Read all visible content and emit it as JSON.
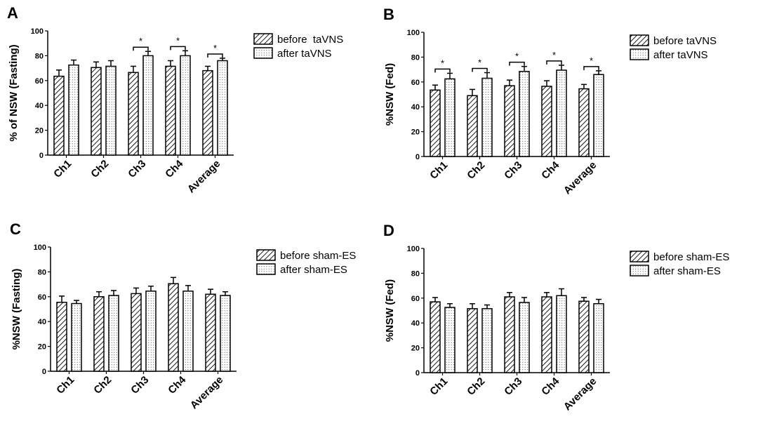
{
  "chart_data": [
    {
      "type": "bar",
      "panel_label": "A",
      "ylabel": "% of NSW (Fasting)",
      "ylim": [
        0,
        100
      ],
      "yticks": [
        "0",
        "20",
        "40",
        "60",
        "80",
        "100"
      ],
      "categories": [
        "Ch1",
        "Ch2",
        "Ch3",
        "Ch4",
        "Average"
      ],
      "series": [
        {
          "name": "before  taVNS",
          "pattern": "hatch",
          "values": [
            63.5,
            70.5,
            66.5,
            71.5,
            68
          ],
          "errors": [
            5,
            4.5,
            5,
            4.5,
            3.5
          ]
        },
        {
          "name": "after taVNS",
          "pattern": "dots",
          "values": [
            72.5,
            71.5,
            80,
            80,
            76
          ],
          "errors": [
            4,
            4.5,
            3.5,
            4,
            2
          ]
        }
      ],
      "significance": [
        false,
        false,
        true,
        true,
        true
      ],
      "significance_mark": "*"
    },
    {
      "type": "bar",
      "panel_label": "B",
      "ylabel": "%NSW (Fed)",
      "ylim": [
        0,
        100
      ],
      "yticks": [
        "0",
        "20",
        "40",
        "60",
        "80",
        "100"
      ],
      "categories": [
        "Ch1",
        "Ch2",
        "Ch3",
        "Ch4",
        "Average"
      ],
      "series": [
        {
          "name": "before taVNS",
          "pattern": "hatch",
          "values": [
            53.5,
            49,
            57,
            56.5,
            54.5
          ],
          "errors": [
            4,
            5,
            4.5,
            4.5,
            3.5
          ]
        },
        {
          "name": "after taVNS",
          "pattern": "dots",
          "values": [
            62.5,
            63,
            68.5,
            69.5,
            66
          ],
          "errors": [
            4.5,
            4.5,
            4,
            4,
            3
          ]
        }
      ],
      "significance": [
        true,
        true,
        true,
        true,
        true
      ],
      "significance_mark": "*"
    },
    {
      "type": "bar",
      "panel_label": "C",
      "ylabel": "%NSW (Fasting)",
      "ylim": [
        0,
        100
      ],
      "yticks": [
        "0",
        "20",
        "40",
        "60",
        "80",
        "100"
      ],
      "categories": [
        "Ch1",
        "Ch2",
        "Ch3",
        "Ch4",
        "Average"
      ],
      "series": [
        {
          "name": "before sham-ES",
          "pattern": "hatch",
          "values": [
            55.5,
            60,
            62.5,
            70.5,
            62
          ],
          "errors": [
            5,
            4,
            4.5,
            5,
            4
          ]
        },
        {
          "name": "after sham-ES",
          "pattern": "dots",
          "values": [
            54.5,
            61,
            64.5,
            64.5,
            61
          ],
          "errors": [
            2.5,
            4,
            4,
            4.5,
            3
          ]
        }
      ],
      "significance": [
        false,
        false,
        false,
        false,
        false
      ],
      "significance_mark": "*"
    },
    {
      "type": "bar",
      "panel_label": "D",
      "ylabel": "%NSW (Fed)",
      "ylim": [
        0,
        100
      ],
      "yticks": [
        "0",
        "20",
        "40",
        "60",
        "80",
        "100"
      ],
      "categories": [
        "Ch1",
        "Ch2",
        "Ch3",
        "Ch4",
        "Average"
      ],
      "series": [
        {
          "name": "before sham-ES",
          "pattern": "hatch",
          "values": [
            57,
            51.5,
            61,
            61,
            57.5
          ],
          "errors": [
            3.5,
            4,
            3.5,
            3.5,
            3
          ]
        },
        {
          "name": "after sham-ES",
          "pattern": "dots",
          "values": [
            52.5,
            51.5,
            56.5,
            62,
            55.5
          ],
          "errors": [
            3,
            3,
            4,
            5.5,
            3.5
          ]
        }
      ],
      "significance": [
        false,
        false,
        false,
        false,
        false
      ],
      "significance_mark": "*"
    }
  ]
}
